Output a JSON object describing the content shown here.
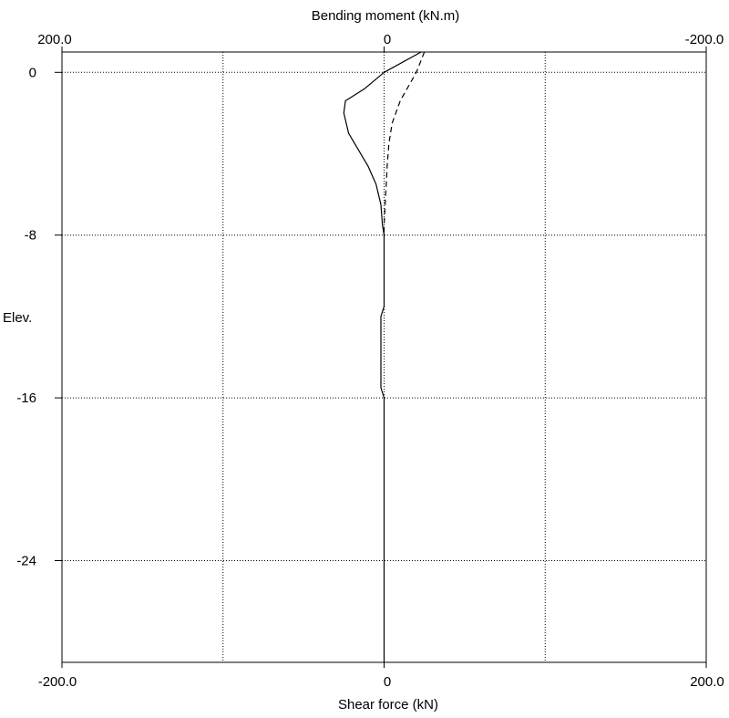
{
  "chart_data": {
    "type": "line",
    "top_axis": {
      "label": "Bending moment (kN.m)",
      "range": [
        200.0,
        -200.0
      ],
      "tick_labels": [
        "200.0",
        "0",
        "-200.0"
      ]
    },
    "bottom_axis": {
      "label": "Shear force (kN)",
      "range": [
        -200.0,
        200.0
      ],
      "tick_labels": [
        "-200.0",
        "0",
        "200.0"
      ]
    },
    "y_axis": {
      "label": "Elev.",
      "range": [
        -29.0,
        1.0
      ],
      "tick_values": [
        0,
        -8,
        -16,
        -24
      ],
      "tick_labels": [
        "0",
        "-8",
        "-16",
        "-24"
      ]
    },
    "grid": true,
    "series": [
      {
        "style": "solid",
        "axis": "bottom",
        "points": [
          [
            23,
            1.0
          ],
          [
            0,
            0
          ],
          [
            -12,
            -0.8
          ],
          [
            -24,
            -1.4
          ],
          [
            -25,
            -2.0
          ],
          [
            -22,
            -3.0
          ],
          [
            -10,
            -4.6
          ],
          [
            -5,
            -5.5
          ],
          [
            -2,
            -6.5
          ],
          [
            -1,
            -7.5
          ],
          [
            0,
            -8.0
          ],
          [
            0,
            -11.5
          ],
          [
            -2,
            -12.0
          ],
          [
            -2,
            -15.5
          ],
          [
            0,
            -16.0
          ],
          [
            0,
            -29.0
          ]
        ]
      },
      {
        "style": "dashed",
        "axis": "top",
        "points": [
          [
            -25,
            1.0
          ],
          [
            -20,
            0
          ],
          [
            -10,
            -1.4
          ],
          [
            -5,
            -2.5
          ],
          [
            -3,
            -3.5
          ],
          [
            -2,
            -4.5
          ],
          [
            -1,
            -6.0
          ],
          [
            0,
            -7.5
          ],
          [
            0,
            -8.0
          ]
        ]
      }
    ]
  }
}
